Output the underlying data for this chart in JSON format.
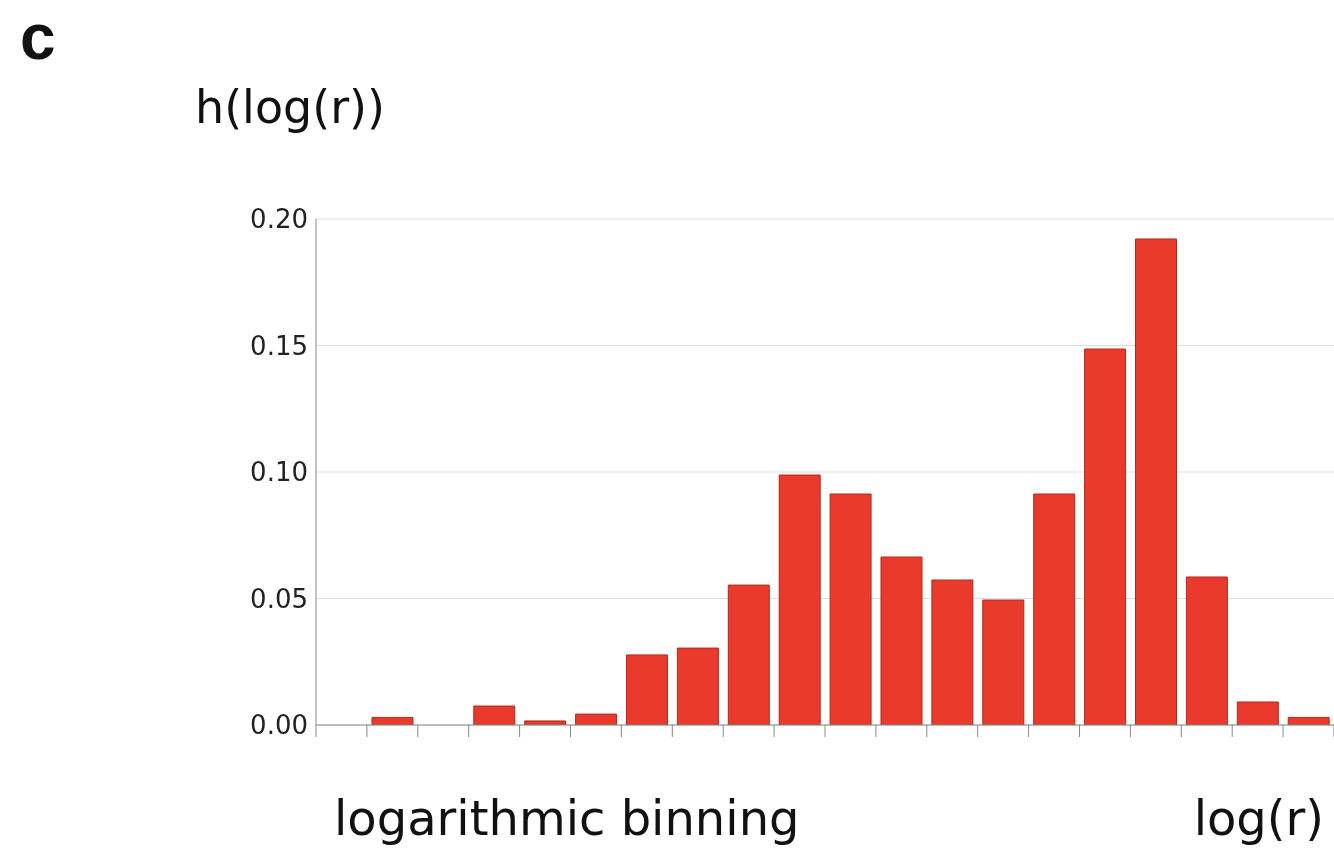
{
  "chart_data": {
    "type": "bar",
    "ylabel": "h(log(r))",
    "xlabel": "log(r)",
    "annotations": [
      "c",
      "logarithmic binning"
    ],
    "categories": [
      null,
      null,
      null,
      null,
      null,
      null,
      null,
      null,
      null,
      null,
      null,
      null,
      null,
      null,
      null,
      null,
      null,
      null,
      null,
      null
    ],
    "values": [
      0,
      0.003,
      0,
      0.0075,
      0.0016,
      0.0043,
      0.0277,
      0.0304,
      0.0553,
      0.0988,
      0.0913,
      0.0664,
      0.0573,
      0.0494,
      0.0913,
      0.1486,
      0.1921,
      0.0585,
      0.0091,
      0.003
    ],
    "color": "#e93a2c",
    "ylim": [
      0,
      0.2
    ],
    "yticks": [
      {
        "value": 0,
        "label": "0.00"
      },
      {
        "value": 0.05,
        "label": "0.05"
      },
      {
        "value": 0.1,
        "label": "0.10"
      },
      {
        "value": 0.15,
        "label": "0.15"
      },
      {
        "value": 0.2,
        "label": "0.20"
      }
    ],
    "grid": "y",
    "tick_labels": "y"
  }
}
